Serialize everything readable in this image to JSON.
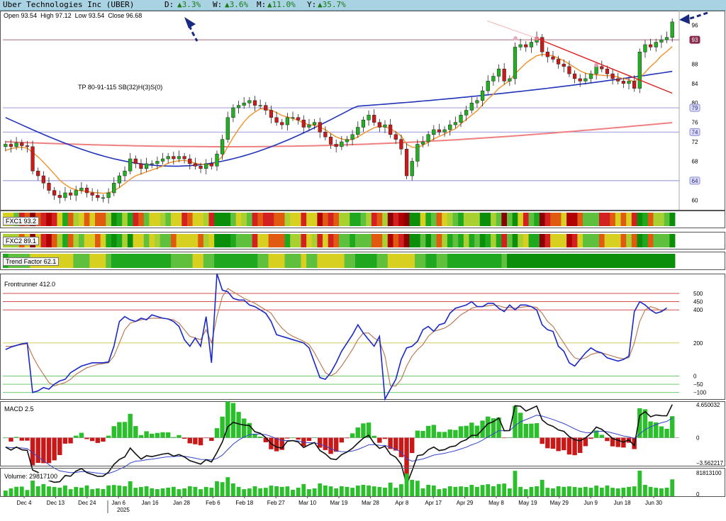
{
  "header": {
    "title": "Uber Technologies Inc (UBER)",
    "day_label": "D:",
    "day_change": "▲3.3%",
    "week_label": "W:",
    "week_change": "▲3.6%",
    "month_label": "M:",
    "month_change": "▲11.0%",
    "year_label": "Y:",
    "year_change": "▲35.7%"
  },
  "ohlc": {
    "open_label": "Open",
    "open": "93.54",
    "high_label": "High",
    "high": "97.12",
    "low_label": "Low",
    "low": "93.54",
    "close_label": "Close",
    "close": "96.68"
  },
  "annotation": "TP 80-91-115 SB(32)H(3)S(0)",
  "price_badges": [
    "93",
    "79",
    "74",
    "64"
  ],
  "bands": {
    "fxc1": "FXC1 93.2",
    "fxc2": "FXC2 89.1",
    "trend": "Trend Factor 62.1"
  },
  "indicators": {
    "frontrunner": "Frontrunner 412.0",
    "macd": "MACD 2.5",
    "macd_top": "4.650032",
    "macd_zero": "0",
    "macd_bottom": "-3.562217",
    "volume": "Volume: 29817100",
    "volume_top": "81813100",
    "volume_zero": "0"
  },
  "colors": {
    "up": "#22b022",
    "down": "#cc1a1a",
    "ma_fast": "#f0922a",
    "ma_mid": "#2233bb",
    "ma_slow": "#f08080",
    "trendline": "#dd2222",
    "signal": "#1a28c8"
  },
  "chart_data": [
    {
      "type": "candlestick",
      "title": "Uber Technologies Inc (UBER)",
      "ylim": [
        58,
        99
      ],
      "y_ticks": [
        60,
        64,
        68,
        72,
        74,
        76,
        79,
        80,
        84,
        88,
        93,
        96
      ],
      "x_labels": [
        "Dec 4",
        "Dec 13",
        "Dec 24",
        "Jan 6",
        "Jan 16",
        "Jan 28",
        "Feb 6",
        "Feb 18",
        "Feb 27",
        "Mar 10",
        "Mar 19",
        "Mar 28",
        "Apr 8",
        "Apr 17",
        "Apr 29",
        "May 8",
        "May 19",
        "May 29",
        "Jun 9",
        "Jun 18",
        "Jun 30"
      ],
      "year_marker": "2025",
      "close": [
        71.5,
        71.0,
        71.8,
        71.2,
        71.0,
        66.0,
        65.0,
        63.5,
        62.0,
        61.0,
        60.5,
        61.5,
        61.0,
        62.0,
        62.5,
        61.5,
        61.0,
        60.5,
        60.5,
        61.5,
        63.5,
        65.0,
        66.0,
        68.5,
        67.5,
        66.5,
        67.5,
        67.5,
        68.0,
        68.5,
        69.0,
        68.5,
        69.0,
        68.5,
        67.5,
        67.0,
        66.5,
        67.5,
        67.0,
        69.5,
        72.5,
        77.0,
        79.0,
        79.5,
        80.0,
        80.5,
        79.5,
        79.5,
        78.5,
        77.0,
        76.0,
        75.5,
        77.0,
        77.0,
        76.5,
        75.0,
        75.5,
        76.0,
        74.0,
        73.0,
        71.5,
        71.0,
        72.0,
        72.5,
        73.5,
        75.0,
        76.5,
        77.5,
        76.0,
        75.0,
        75.5,
        73.5,
        72.5,
        70.5,
        65.0,
        68.0,
        71.5,
        72.0,
        73.5,
        74.5,
        74.0,
        74.5,
        75.5,
        76.0,
        77.5,
        78.5,
        80.0,
        80.5,
        82.5,
        84.5,
        85.5,
        87.0,
        84.5,
        85.0,
        91.5,
        92.0,
        91.5,
        92.5,
        93.5,
        90.5,
        89.5,
        89.0,
        88.0,
        87.5,
        86.0,
        85.0,
        84.5,
        85.0,
        86.0,
        87.5,
        87.0,
        86.0,
        85.0,
        84.5,
        84.0,
        84.5,
        83.0,
        90.5,
        92.0,
        91.5,
        92.5,
        93.0,
        93.5,
        96.68
      ],
      "moving_averages": {
        "fast": [
          70.2,
          70.6,
          70.8,
          70.9,
          70.7,
          69.8,
          68.9,
          67.8,
          66.6,
          65.4,
          64.1,
          63.2,
          62.5,
          62.1,
          61.9,
          61.8,
          61.6,
          61.5,
          61.4,
          61.5,
          61.9,
          62.6,
          63.4,
          64.3,
          65.0,
          65.4,
          65.8,
          66.2,
          66.6,
          67.0,
          67.6,
          67.9,
          68.1,
          68.2,
          67.9,
          67.6,
          67.4,
          67.3,
          67.3,
          67.9,
          69.0,
          71.0,
          72.9,
          74.6,
          76.1,
          77.3,
          78.1,
          78.8,
          78.7,
          78.5,
          78.0,
          77.4,
          77.1,
          76.8,
          76.4,
          75.9,
          75.5,
          75.4,
          75.0,
          74.5,
          73.7,
          73.0,
          72.6,
          72.3,
          72.5,
          73.0,
          73.7,
          74.3,
          74.9,
          75.2,
          75.1,
          74.7,
          74.0,
          73.2,
          71.5,
          70.9,
          70.8,
          71.3,
          71.9,
          72.6,
          73.1,
          73.6,
          74.2,
          74.7,
          75.7,
          76.6,
          77.5,
          78.4,
          79.6,
          80.8,
          81.8,
          83.0,
          83.8,
          84.6,
          86.0,
          87.1,
          88.2,
          89.0,
          89.7,
          90.0,
          89.9,
          89.7,
          89.2,
          88.7,
          88.0,
          87.3,
          86.6,
          86.1,
          85.9,
          85.8,
          85.7,
          85.6,
          85.6,
          85.3,
          85.0,
          84.8,
          84.3,
          85.2,
          86.3,
          87.5,
          88.5,
          89.7,
          90.6,
          91.6
        ],
        "mid_start": 77,
        "mid_end": 86.5,
        "slow_start": 72,
        "slow_end": 75.7
      },
      "horizontal_levels": [
        93,
        79,
        74,
        64
      ],
      "trendline": {
        "from": 93.3,
        "to": 82.0
      }
    },
    {
      "type": "heatmap",
      "rows": [
        "FXC1 93.2",
        "FXC2 89.1",
        "Trend Factor 62.1"
      ]
    },
    {
      "type": "line",
      "title": "Frontrunner 412.0",
      "ylim": [
        -140,
        620
      ],
      "y_ticks": [
        500,
        450,
        400,
        200,
        0,
        -50,
        -100
      ],
      "series": [
        {
          "values": [
            160,
            175,
            185,
            195,
            200,
            -100,
            -90,
            -70,
            -80,
            -50,
            -30,
            -20,
            20,
            40,
            60,
            70,
            80,
            80,
            80,
            85,
            180,
            330,
            360,
            340,
            330,
            350,
            340,
            370,
            360,
            350,
            345,
            330,
            300,
            220,
            180,
            230,
            180,
            360,
            80,
            620,
            520,
            510,
            470,
            460,
            460,
            430,
            420,
            400,
            380,
            330,
            250,
            240,
            230,
            220,
            210,
            200,
            170,
            80,
            -10,
            -20,
            20,
            80,
            150,
            200,
            250,
            310,
            260,
            220,
            180,
            240,
            -140,
            -80,
            -20,
            100,
            170,
            180,
            210,
            280,
            300,
            270,
            310,
            320,
            380,
            410,
            420,
            430,
            450,
            420,
            420,
            440,
            440,
            410,
            390,
            430,
            400,
            430,
            430,
            420,
            400,
            310,
            280,
            270,
            180,
            150,
            80,
            60,
            100,
            140,
            170,
            150,
            140,
            110,
            100,
            90,
            100,
            120,
            390,
            450,
            430,
            400,
            380,
            390,
            412
          ]
        },
        {
          "values": [
            180,
            180,
            185,
            190,
            195,
            120,
            60,
            10,
            -40,
            -60,
            -50,
            -40,
            -20,
            10,
            30,
            50,
            60,
            70,
            75,
            80,
            120,
            200,
            280,
            320,
            330,
            340,
            345,
            350,
            350,
            350,
            345,
            340,
            320,
            280,
            240,
            230,
            220,
            280,
            200,
            360,
            480,
            530,
            510,
            490,
            470,
            455,
            440,
            420,
            400,
            380,
            330,
            290,
            260,
            240,
            225,
            210,
            190,
            140,
            80,
            20,
            0,
            20,
            60,
            110,
            160,
            220,
            260,
            260,
            230,
            210,
            120,
            -60,
            -60,
            -20,
            60,
            120,
            160,
            190,
            240,
            270,
            280,
            290,
            310,
            340,
            370,
            390,
            410,
            420,
            420,
            425,
            430,
            425,
            415,
            415,
            410,
            415,
            420,
            420,
            415,
            380,
            330,
            300,
            250,
            200,
            150,
            110,
            100,
            110,
            130,
            140,
            140,
            130,
            120,
            110,
            105,
            110,
            200,
            330,
            400,
            420,
            410,
            395,
            400
          ]
        }
      ]
    },
    {
      "type": "bar",
      "title": "MACD 2.5",
      "ylim": [
        -3.562217,
        4.650032
      ],
      "y_ticks": [
        4.650032,
        0,
        -3.562217
      ]
    },
    {
      "type": "bar",
      "title": "Volume: 29817100",
      "ylim": [
        0,
        81813100
      ],
      "y_ticks": [
        81813100,
        0
      ]
    }
  ]
}
